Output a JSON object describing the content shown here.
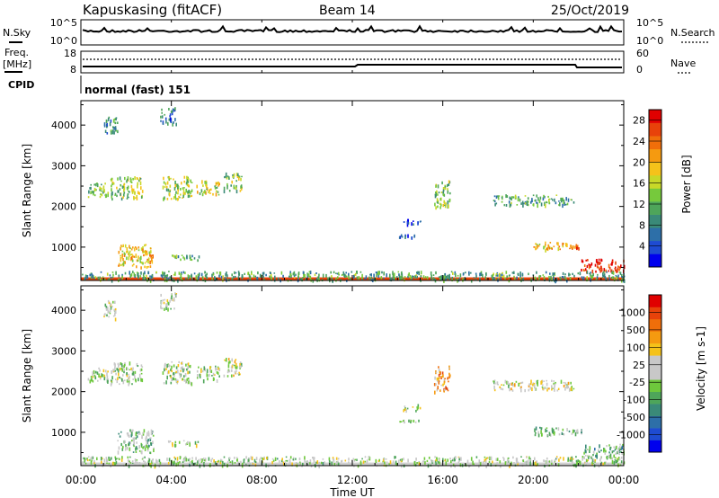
{
  "header": {
    "station": "Kapuskasing (fitACF)",
    "beam": "Beam 14",
    "date": "25/Oct/2019"
  },
  "noise_panel": {
    "left_label": "N.Sky",
    "right_label": "N.Search",
    "left_ticks": [
      "10^5",
      "10^0"
    ],
    "right_ticks": [
      "10^5",
      "10^0"
    ]
  },
  "freq_panel": {
    "left_label_1": "Freq.",
    "left_label_2": "[MHz]",
    "right_label": "Nave",
    "left_ticks": [
      "18",
      "8"
    ],
    "right_ticks": [
      "60",
      "0"
    ]
  },
  "cpid": {
    "label": "CPID",
    "value": "normal (fast) 151"
  },
  "time_axis": {
    "label": "Time UT",
    "ticks": [
      "00:00",
      "04:00",
      "08:00",
      "12:00",
      "16:00",
      "20:00",
      "00:00"
    ]
  },
  "chart_data": [
    {
      "type": "heatmap",
      "name": "power",
      "ylabel": "Slant Range [km]",
      "x_range_hours": [
        0,
        24
      ],
      "ylim": [
        180,
        4600
      ],
      "y_ticks": [
        1000,
        2000,
        3000,
        4000
      ],
      "colorbar": {
        "label": "Power [dB]",
        "tick_labels": [
          "4",
          "8",
          "12",
          "16",
          "20",
          "24",
          "28"
        ],
        "range": [
          0,
          30
        ],
        "colors": [
          "#0000ee",
          "#1e4bd2",
          "#2d6fa8",
          "#3a8a78",
          "#4ea55a",
          "#76c93c",
          "#c8d828",
          "#f5c21a",
          "#f59a10",
          "#f06e0a",
          "#e8420a",
          "#e00000"
        ]
      },
      "echo_regions": [
        {
          "t": [
            0.3,
            1.2
          ],
          "r": [
            2250,
            2600
          ],
          "level": 0.42
        },
        {
          "t": [
            1.3,
            2.7
          ],
          "r": [
            2200,
            2750
          ],
          "level": 0.48
        },
        {
          "t": [
            3.6,
            4.9
          ],
          "r": [
            2200,
            2750
          ],
          "level": 0.5
        },
        {
          "t": [
            5.1,
            6.1
          ],
          "r": [
            2300,
            2650
          ],
          "level": 0.55
        },
        {
          "t": [
            6.3,
            7.1
          ],
          "r": [
            2400,
            2850
          ],
          "level": 0.45
        },
        {
          "t": [
            1.0,
            1.6
          ],
          "r": [
            3800,
            4250
          ],
          "level": 0.3
        },
        {
          "t": [
            3.5,
            4.2
          ],
          "r": [
            4050,
            4450
          ],
          "level": 0.25
        },
        {
          "t": [
            1.6,
            3.2
          ],
          "r": [
            520,
            1080
          ],
          "level": 0.62
        },
        {
          "t": [
            3.8,
            5.2
          ],
          "r": [
            700,
            820
          ],
          "level": 0.4
        },
        {
          "t": [
            15.6,
            16.3
          ],
          "r": [
            2000,
            2650
          ],
          "level": 0.45
        },
        {
          "t": [
            14.2,
            15.0
          ],
          "r": [
            1550,
            1700
          ],
          "level": 0.2
        },
        {
          "t": [
            14.0,
            15.0
          ],
          "r": [
            1250,
            1320
          ],
          "level": 0.15
        },
        {
          "t": [
            18.2,
            21.8
          ],
          "r": [
            2050,
            2300
          ],
          "level": 0.35
        },
        {
          "t": [
            20.0,
            21.5
          ],
          "r": [
            950,
            1150
          ],
          "level": 0.62
        },
        {
          "t": [
            21.5,
            22.2
          ],
          "r": [
            980,
            1080
          ],
          "level": 0.85
        },
        {
          "t": [
            22.1,
            24.0
          ],
          "r": [
            420,
            720
          ],
          "level": 0.92
        },
        {
          "t": [
            0.0,
            24.0
          ],
          "r": [
            200,
            420
          ],
          "level": 0.35
        }
      ]
    },
    {
      "type": "heatmap",
      "name": "velocity",
      "ylabel": "Slant Range [km]",
      "x_range_hours": [
        0,
        24
      ],
      "ylim": [
        180,
        4600
      ],
      "y_ticks": [
        1000,
        2000,
        3000,
        4000
      ],
      "colorbar": {
        "label": "Velocity [m s-1]",
        "tick_labels": [
          "1000",
          "500",
          "100",
          "25",
          "-25",
          "-100",
          "-500",
          "-1000"
        ],
        "colors": [
          "#0000ee",
          "#1e4bd2",
          "#2d6fa8",
          "#3a8a78",
          "#4ea55a",
          "#6ec83c",
          "#c8c8c8",
          "#c8c8c8",
          "#f5c21a",
          "#f59a10",
          "#f06e0a",
          "#e8420a",
          "#e00000"
        ]
      },
      "echo_regions": [
        {
          "t": [
            0.3,
            1.2
          ],
          "r": [
            2250,
            2600
          ],
          "level": 0.5
        },
        {
          "t": [
            1.3,
            2.7
          ],
          "r": [
            2200,
            2750
          ],
          "level": 0.5
        },
        {
          "t": [
            3.6,
            4.9
          ],
          "r": [
            2200,
            2750
          ],
          "level": 0.48
        },
        {
          "t": [
            5.1,
            6.1
          ],
          "r": [
            2300,
            2650
          ],
          "level": 0.5
        },
        {
          "t": [
            6.3,
            7.1
          ],
          "r": [
            2400,
            2850
          ],
          "level": 0.55
        },
        {
          "t": [
            1.0,
            1.6
          ],
          "r": [
            3800,
            4250
          ],
          "level": 0.5
        },
        {
          "t": [
            3.5,
            4.2
          ],
          "r": [
            4050,
            4450
          ],
          "level": 0.5
        },
        {
          "t": [
            1.6,
            3.2
          ],
          "r": [
            520,
            1080
          ],
          "level": 0.42
        },
        {
          "t": [
            3.8,
            5.2
          ],
          "r": [
            700,
            820
          ],
          "level": 0.5
        },
        {
          "t": [
            15.6,
            16.3
          ],
          "r": [
            2000,
            2650
          ],
          "level": 0.7
        },
        {
          "t": [
            14.2,
            15.0
          ],
          "r": [
            1550,
            1700
          ],
          "level": 0.5
        },
        {
          "t": [
            14.0,
            15.0
          ],
          "r": [
            1250,
            1320
          ],
          "level": 0.5
        },
        {
          "t": [
            18.2,
            21.8
          ],
          "r": [
            2050,
            2300
          ],
          "level": 0.55
        },
        {
          "t": [
            20.0,
            21.5
          ],
          "r": [
            950,
            1150
          ],
          "level": 0.38
        },
        {
          "t": [
            21.5,
            22.2
          ],
          "r": [
            980,
            1080
          ],
          "level": 0.4
        },
        {
          "t": [
            22.1,
            24.0
          ],
          "r": [
            420,
            720
          ],
          "level": 0.38
        },
        {
          "t": [
            0.0,
            24.0
          ],
          "r": [
            200,
            420
          ],
          "level": 0.48
        }
      ]
    }
  ]
}
